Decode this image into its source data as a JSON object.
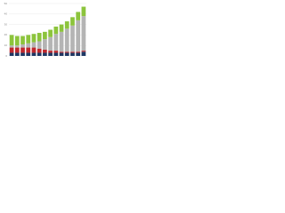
{
  "chart_data": {
    "type": "stacked-bar",
    "categories": [
      null,
      null,
      null,
      null,
      null,
      null,
      null,
      null,
      null,
      null,
      null,
      null,
      null,
      null
    ],
    "series": [
      {
        "color": "#1f3864",
        "values": [
          3,
          3,
          3,
          3,
          3,
          3,
          3,
          3,
          3,
          3,
          3,
          3,
          3,
          4
        ]
      },
      {
        "color": "#c0282d",
        "values": [
          5,
          5,
          5,
          5,
          5,
          4,
          3,
          2,
          2,
          1,
          1,
          1,
          1,
          1
        ]
      },
      {
        "color": "#b4b4b4",
        "values": [
          2,
          2,
          3,
          4,
          5,
          7,
          10,
          13,
          16,
          19,
          22,
          25,
          30,
          33
        ]
      },
      {
        "color": "#8cc43c",
        "values": [
          10,
          9,
          8,
          8,
          8,
          8,
          7,
          7,
          7,
          7,
          7,
          8,
          8,
          9
        ]
      }
    ],
    "ylim": [
      0,
      50
    ],
    "yticks": [
      0,
      10,
      20,
      30,
      40,
      50
    ],
    "grid": true
  }
}
